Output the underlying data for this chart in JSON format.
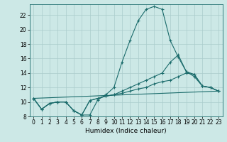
{
  "xlabel": "Humidex (Indice chaleur)",
  "bg_color": "#cce8e6",
  "line_color": "#1a6b6b",
  "grid_color": "#aacccc",
  "xlim": [
    -0.5,
    23.5
  ],
  "ylim": [
    8,
    23.5
  ],
  "yticks": [
    8,
    10,
    12,
    14,
    16,
    18,
    20,
    22
  ],
  "xticks": [
    0,
    1,
    2,
    3,
    4,
    5,
    6,
    7,
    8,
    9,
    10,
    11,
    12,
    13,
    14,
    15,
    16,
    17,
    18,
    19,
    20,
    21,
    22,
    23
  ],
  "line1_x": [
    0,
    1,
    2,
    3,
    4,
    5,
    6,
    7,
    8,
    9,
    10,
    11,
    12,
    13,
    14,
    15,
    16,
    17,
    18,
    19,
    20,
    21,
    22,
    23
  ],
  "line1_y": [
    10.5,
    9.0,
    9.8,
    10.0,
    10.0,
    8.8,
    8.2,
    8.2,
    10.3,
    11.0,
    12.0,
    15.5,
    18.5,
    21.2,
    22.8,
    23.2,
    22.8,
    18.5,
    16.2,
    14.2,
    13.8,
    12.2,
    12.0,
    11.5
  ],
  "line2_x": [
    0,
    1,
    2,
    3,
    4,
    5,
    6,
    7,
    8,
    9,
    10,
    11,
    12,
    13,
    14,
    15,
    16,
    17,
    18,
    19,
    20,
    21,
    22,
    23
  ],
  "line2_y": [
    10.5,
    9.0,
    9.8,
    10.0,
    10.0,
    8.8,
    8.2,
    10.2,
    10.5,
    10.8,
    11.0,
    11.5,
    12.0,
    12.5,
    13.0,
    13.5,
    14.0,
    15.5,
    16.5,
    14.2,
    13.5,
    12.2,
    12.0,
    11.5
  ],
  "line3_x": [
    0,
    1,
    2,
    3,
    4,
    5,
    6,
    7,
    8,
    9,
    10,
    11,
    12,
    13,
    14,
    15,
    16,
    17,
    18,
    19,
    20,
    21,
    22,
    23
  ],
  "line3_y": [
    10.5,
    9.0,
    9.8,
    10.0,
    10.0,
    8.8,
    8.2,
    10.2,
    10.5,
    10.8,
    11.0,
    11.2,
    11.5,
    11.8,
    12.0,
    12.5,
    12.8,
    13.0,
    13.5,
    14.0,
    13.8,
    12.2,
    12.0,
    11.5
  ],
  "line4_x": [
    0,
    23
  ],
  "line4_y": [
    10.5,
    11.5
  ]
}
